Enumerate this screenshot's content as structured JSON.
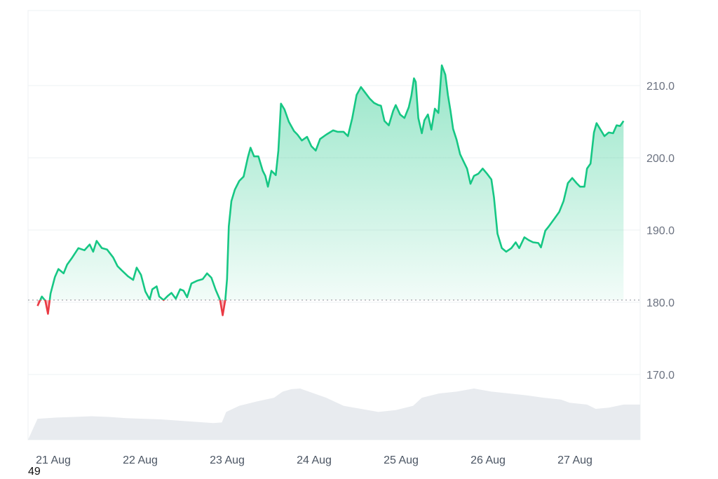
{
  "chart_data": {
    "type": "area",
    "baseline": 180.3,
    "ylim": [
      161,
      220
    ],
    "y_ticks": [
      210.0,
      200.0,
      190.0,
      180.0,
      170.0
    ],
    "y_tick_labels": [
      "210.0",
      "200.0",
      "190.0",
      "180.0",
      "170.0"
    ],
    "x_range": [
      0,
      7.0
    ],
    "x_ticks": [
      0,
      1,
      2,
      3,
      4,
      5,
      6
    ],
    "x_tick_labels": [
      "21 Aug",
      "22 Aug",
      "23 Aug",
      "24 Aug",
      "25 Aug",
      "26 Aug",
      "27 Aug"
    ],
    "grid": true,
    "series": [
      {
        "points": [
          [
            -0.02,
            179.5
          ],
          [
            0.03,
            180.8
          ],
          [
            0.07,
            180.2
          ],
          [
            0.1,
            178.4
          ],
          [
            0.13,
            181.2
          ],
          [
            0.18,
            183.5
          ],
          [
            0.22,
            184.6
          ],
          [
            0.28,
            184.0
          ],
          [
            0.32,
            185.2
          ],
          [
            0.38,
            186.2
          ],
          [
            0.45,
            187.5
          ],
          [
            0.52,
            187.2
          ],
          [
            0.58,
            188.0
          ],
          [
            0.62,
            187.0
          ],
          [
            0.66,
            188.5
          ],
          [
            0.72,
            187.5
          ],
          [
            0.78,
            187.3
          ],
          [
            0.85,
            186.2
          ],
          [
            0.9,
            185.0
          ],
          [
            0.95,
            184.4
          ],
          [
            1.02,
            183.6
          ],
          [
            1.08,
            183.1
          ],
          [
            1.12,
            184.8
          ],
          [
            1.17,
            183.8
          ],
          [
            1.22,
            181.5
          ],
          [
            1.27,
            180.4
          ],
          [
            1.3,
            181.8
          ],
          [
            1.35,
            182.2
          ],
          [
            1.38,
            180.8
          ],
          [
            1.43,
            180.3
          ],
          [
            1.48,
            180.9
          ],
          [
            1.52,
            181.3
          ],
          [
            1.57,
            180.5
          ],
          [
            1.62,
            181.8
          ],
          [
            1.66,
            181.6
          ],
          [
            1.7,
            180.7
          ],
          [
            1.75,
            182.6
          ],
          [
            1.82,
            183.0
          ],
          [
            1.88,
            183.2
          ],
          [
            1.93,
            184.0
          ],
          [
            1.98,
            183.4
          ],
          [
            2.03,
            181.7
          ],
          [
            2.08,
            180.3
          ],
          [
            2.11,
            178.2
          ],
          [
            2.14,
            180.4
          ],
          [
            2.16,
            183.2
          ],
          [
            2.18,
            190.5
          ],
          [
            2.21,
            194.0
          ],
          [
            2.25,
            195.6
          ],
          [
            2.3,
            196.8
          ],
          [
            2.35,
            197.4
          ],
          [
            2.4,
            200.1
          ],
          [
            2.43,
            201.4
          ],
          [
            2.47,
            200.2
          ],
          [
            2.52,
            200.2
          ],
          [
            2.57,
            198.2
          ],
          [
            2.6,
            197.5
          ],
          [
            2.63,
            196.0
          ],
          [
            2.67,
            198.2
          ],
          [
            2.72,
            197.6
          ],
          [
            2.75,
            201.0
          ],
          [
            2.78,
            207.5
          ],
          [
            2.82,
            206.7
          ],
          [
            2.87,
            205.0
          ],
          [
            2.93,
            203.7
          ],
          [
            2.97,
            203.2
          ],
          [
            3.02,
            202.4
          ],
          [
            3.08,
            202.9
          ],
          [
            3.13,
            201.6
          ],
          [
            3.18,
            201.0
          ],
          [
            3.23,
            202.6
          ],
          [
            3.3,
            203.2
          ],
          [
            3.38,
            203.8
          ],
          [
            3.43,
            203.6
          ],
          [
            3.5,
            203.6
          ],
          [
            3.55,
            203.0
          ],
          [
            3.6,
            205.5
          ],
          [
            3.65,
            208.7
          ],
          [
            3.7,
            209.8
          ],
          [
            3.75,
            209.0
          ],
          [
            3.8,
            208.2
          ],
          [
            3.85,
            207.6
          ],
          [
            3.9,
            207.3
          ],
          [
            3.93,
            207.2
          ],
          [
            3.97,
            205.1
          ],
          [
            4.02,
            204.5
          ],
          [
            4.07,
            206.5
          ],
          [
            4.1,
            207.3
          ],
          [
            4.15,
            206.0
          ],
          [
            4.2,
            205.5
          ],
          [
            4.25,
            207.0
          ],
          [
            4.28,
            208.6
          ],
          [
            4.31,
            211.0
          ],
          [
            4.33,
            210.5
          ],
          [
            4.36,
            205.5
          ],
          [
            4.4,
            203.4
          ],
          [
            4.43,
            205.2
          ],
          [
            4.47,
            206.0
          ],
          [
            4.51,
            203.9
          ],
          [
            4.55,
            206.8
          ],
          [
            4.59,
            206.2
          ],
          [
            4.63,
            212.8
          ],
          [
            4.67,
            211.5
          ],
          [
            4.7,
            208.7
          ],
          [
            4.73,
            206.5
          ],
          [
            4.76,
            204.0
          ],
          [
            4.8,
            202.5
          ],
          [
            4.84,
            200.5
          ],
          [
            4.88,
            199.5
          ],
          [
            4.92,
            198.5
          ],
          [
            4.96,
            196.4
          ],
          [
            5.0,
            197.5
          ],
          [
            5.05,
            197.8
          ],
          [
            5.1,
            198.5
          ],
          [
            5.15,
            197.8
          ],
          [
            5.2,
            197.0
          ],
          [
            5.23,
            194.5
          ],
          [
            5.27,
            189.5
          ],
          [
            5.32,
            187.5
          ],
          [
            5.37,
            187.0
          ],
          [
            5.43,
            187.5
          ],
          [
            5.48,
            188.3
          ],
          [
            5.52,
            187.5
          ],
          [
            5.58,
            189.0
          ],
          [
            5.63,
            188.6
          ],
          [
            5.68,
            188.3
          ],
          [
            5.74,
            188.2
          ],
          [
            5.77,
            187.6
          ],
          [
            5.82,
            189.9
          ],
          [
            5.86,
            190.5
          ],
          [
            5.92,
            191.5
          ],
          [
            5.98,
            192.5
          ],
          [
            6.03,
            194.0
          ],
          [
            6.08,
            196.5
          ],
          [
            6.13,
            197.2
          ],
          [
            6.18,
            196.5
          ],
          [
            6.22,
            196.0
          ],
          [
            6.27,
            196.0
          ],
          [
            6.3,
            198.5
          ],
          [
            6.34,
            199.2
          ],
          [
            6.38,
            203.5
          ],
          [
            6.41,
            204.8
          ],
          [
            6.45,
            204.0
          ],
          [
            6.5,
            203.0
          ],
          [
            6.55,
            203.5
          ],
          [
            6.6,
            203.4
          ],
          [
            6.64,
            204.5
          ],
          [
            6.68,
            204.4
          ],
          [
            6.72,
            205.1
          ]
        ]
      }
    ],
    "volume": {
      "points": [
        [
          -0.02,
          0.34
        ],
        [
          0.2,
          0.36
        ],
        [
          0.4,
          0.37
        ],
        [
          0.6,
          0.38
        ],
        [
          0.8,
          0.37
        ],
        [
          1.0,
          0.35
        ],
        [
          1.2,
          0.34
        ],
        [
          1.4,
          0.33
        ],
        [
          1.6,
          0.31
        ],
        [
          1.8,
          0.29
        ],
        [
          2.0,
          0.27
        ],
        [
          2.1,
          0.28
        ],
        [
          2.15,
          0.45
        ],
        [
          2.3,
          0.55
        ],
        [
          2.5,
          0.62
        ],
        [
          2.7,
          0.68
        ],
        [
          2.8,
          0.78
        ],
        [
          2.9,
          0.82
        ],
        [
          3.0,
          0.83
        ],
        [
          3.1,
          0.78
        ],
        [
          3.3,
          0.68
        ],
        [
          3.5,
          0.55
        ],
        [
          3.7,
          0.5
        ],
        [
          3.9,
          0.45
        ],
        [
          4.1,
          0.48
        ],
        [
          4.3,
          0.55
        ],
        [
          4.4,
          0.68
        ],
        [
          4.6,
          0.75
        ],
        [
          4.8,
          0.78
        ],
        [
          5.0,
          0.83
        ],
        [
          5.2,
          0.78
        ],
        [
          5.4,
          0.75
        ],
        [
          5.6,
          0.72
        ],
        [
          5.8,
          0.68
        ],
        [
          6.0,
          0.65
        ],
        [
          6.1,
          0.6
        ],
        [
          6.3,
          0.57
        ],
        [
          6.4,
          0.5
        ],
        [
          6.55,
          0.52
        ],
        [
          6.72,
          0.57
        ]
      ]
    },
    "colors": {
      "up_line": "#16c784",
      "down_line": "#ea3943",
      "fill_top": "#16c784",
      "volume": "#e8ebef",
      "grid": "#eef0f3",
      "baseline": "#8b8f97"
    }
  },
  "corner_label": "49"
}
